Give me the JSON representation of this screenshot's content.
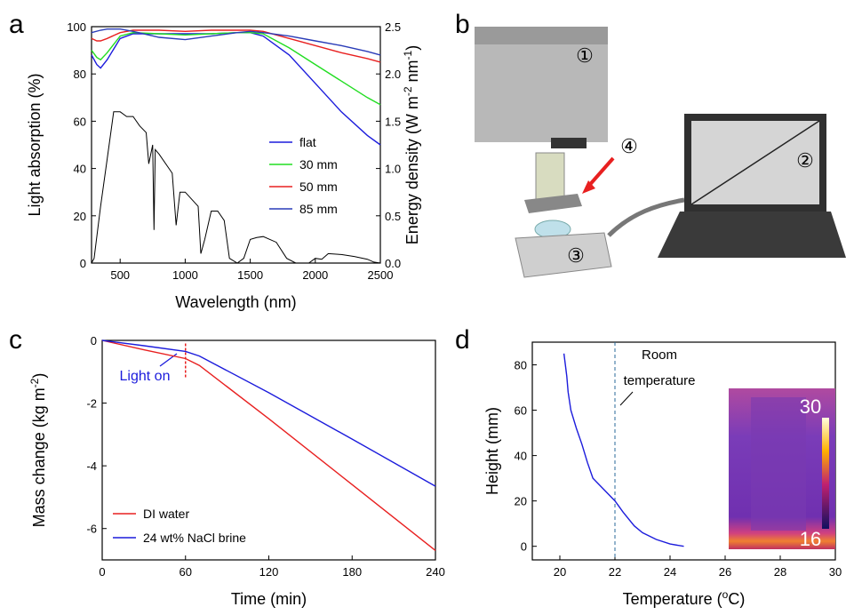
{
  "chart_data": [
    {
      "type": "line",
      "panel_label": "a",
      "x_label": [
        "Wavelength (nm)"
      ],
      "y_label": [
        "Light absorption (%)"
      ],
      "y2_label": [
        "Energy density (W m",
        "-2",
        " nm",
        "-1",
        ")"
      ],
      "xlim": [
        280,
        2500
      ],
      "xticks": [
        500,
        1000,
        1500,
        2000,
        2500
      ],
      "ylim": [
        0,
        100
      ],
      "yticks": [
        0,
        20,
        40,
        60,
        80,
        100
      ],
      "y2lim": [
        0,
        2.5
      ],
      "y2ticks": [
        {
          "value": 0,
          "label": "0.0"
        },
        0.5,
        {
          "value": 1,
          "label": "1.0"
        },
        1.5,
        {
          "value": 2,
          "label": "2.0"
        },
        2.5
      ],
      "legend": "center right",
      "series": [
        {
          "name": "flat",
          "color": "#1c1cdc",
          "x": [
            280,
            320,
            350,
            400,
            500,
            600,
            800,
            1000,
            1200,
            1400,
            1500,
            1600,
            1800,
            2000,
            2200,
            2400,
            2500
          ],
          "values": [
            88,
            84,
            82.5,
            86,
            95,
            97,
            97,
            97,
            97,
            97.5,
            97.5,
            96,
            88,
            76,
            64,
            54,
            50
          ]
        },
        {
          "name": "30 mm",
          "color": "#22dd22",
          "x": [
            280,
            320,
            350,
            400,
            500,
            600,
            800,
            1000,
            1200,
            1400,
            1500,
            1600,
            1800,
            2000,
            2200,
            2400,
            2500
          ],
          "values": [
            90,
            87,
            86,
            89,
            96,
            97.5,
            97,
            96.5,
            97,
            97.5,
            97.5,
            97,
            91,
            84,
            77,
            70,
            67
          ]
        },
        {
          "name": "50 mm",
          "color": "#e82020",
          "x": [
            280,
            320,
            350,
            400,
            500,
            600,
            800,
            1000,
            1200,
            1400,
            1500,
            1600,
            1800,
            2000,
            2200,
            2400,
            2500
          ],
          "values": [
            95,
            94,
            94,
            95,
            97.5,
            98.5,
            98.5,
            98,
            98.5,
            98.5,
            98.5,
            98,
            95,
            92,
            89,
            86.5,
            85
          ]
        },
        {
          "name": "85 mm",
          "color": "#2a3cb8",
          "x": [
            280,
            350,
            400,
            500,
            600,
            800,
            1000,
            1200,
            1400,
            1500,
            1600,
            1800,
            2000,
            2200,
            2400,
            2500
          ],
          "values": [
            97.5,
            98.5,
            99,
            99,
            98,
            95.5,
            94.5,
            96,
            97.5,
            98,
            97.5,
            96,
            94,
            92,
            89.5,
            88
          ]
        },
        {
          "color": "#000000",
          "axis": "y2",
          "x": [
            280,
            300,
            350,
            400,
            430,
            450,
            500,
            550,
            600,
            650,
            700,
            720,
            750,
            760,
            770,
            800,
            900,
            930,
            960,
            1000,
            1100,
            1120,
            1150,
            1200,
            1250,
            1300,
            1340,
            1400,
            1450,
            1500,
            1550,
            1600,
            1700,
            1780,
            1850,
            1950,
            2000,
            2050,
            2100,
            2200,
            2300,
            2400,
            2450,
            2500
          ],
          "values": [
            0,
            0.05,
            0.6,
            1.1,
            1.4,
            1.6,
            1.6,
            1.55,
            1.55,
            1.45,
            1.38,
            1.05,
            1.25,
            0.35,
            1.2,
            1.15,
            0.95,
            0.4,
            0.75,
            0.75,
            0.6,
            0.1,
            0.25,
            0.55,
            0.55,
            0.45,
            0.05,
            0,
            0.05,
            0.25,
            0.27,
            0.28,
            0.22,
            0.05,
            0,
            0,
            0.05,
            0.04,
            0.1,
            0.09,
            0.07,
            0.04,
            0.01,
            0
          ]
        }
      ]
    },
    {
      "type": "line",
      "panel_label": "c",
      "x_label": [
        "Time (min)"
      ],
      "y_label": [
        "Mass change (kg m",
        "-2",
        ")"
      ],
      "xlim": [
        0,
        240
      ],
      "xticks": [
        0,
        60,
        120,
        180,
        240
      ],
      "ylim": [
        -7,
        0
      ],
      "yticks": [
        0,
        -2,
        -4,
        -6
      ],
      "legend": "lower left",
      "vline": 60,
      "annotation": [
        "Light on"
      ],
      "series": [
        {
          "name": "DI water",
          "color": "#e82020",
          "x": [
            0,
            30,
            60,
            70,
            120,
            180,
            240
          ],
          "values": [
            0,
            -0.3,
            -0.58,
            -0.8,
            -2.5,
            -4.6,
            -6.7
          ]
        },
        {
          "name": "24 wt% NaCl brine",
          "color": "#1c1cdc",
          "x": [
            0,
            30,
            60,
            70,
            120,
            180,
            240
          ],
          "values": [
            0,
            -0.17,
            -0.35,
            -0.5,
            -1.67,
            -3.15,
            -4.65
          ]
        }
      ]
    },
    {
      "type": "line",
      "panel_label": "d",
      "x_label": [
        "Temperature (",
        "o",
        "C)"
      ],
      "y_label": [
        "Height (mm)"
      ],
      "xlim": [
        19,
        30
      ],
      "xticks": [
        20,
        22,
        24,
        26,
        28,
        30
      ],
      "ylim": [
        -6,
        90
      ],
      "yticks": [
        0,
        20,
        40,
        60,
        80
      ],
      "vline": 22,
      "annotation": [
        "Room",
        "temperature"
      ],
      "inset_labels": [
        "30",
        "16"
      ],
      "series": [
        {
          "color": "#1c1cdc",
          "x": [
            24.5,
            24,
            23.5,
            23,
            22.7,
            22.3,
            22,
            21.6,
            21.2,
            21,
            20.8,
            20.6,
            20.4,
            20.3,
            20.25,
            20.2,
            20.15
          ],
          "values": [
            0,
            1,
            3,
            6,
            9,
            15,
            20,
            25,
            30,
            37,
            45,
            52,
            60,
            68,
            75,
            80,
            85
          ]
        }
      ]
    }
  ],
  "photo": {
    "panel_label": "b",
    "callouts": [
      "①",
      "②",
      "③",
      "④"
    ]
  }
}
